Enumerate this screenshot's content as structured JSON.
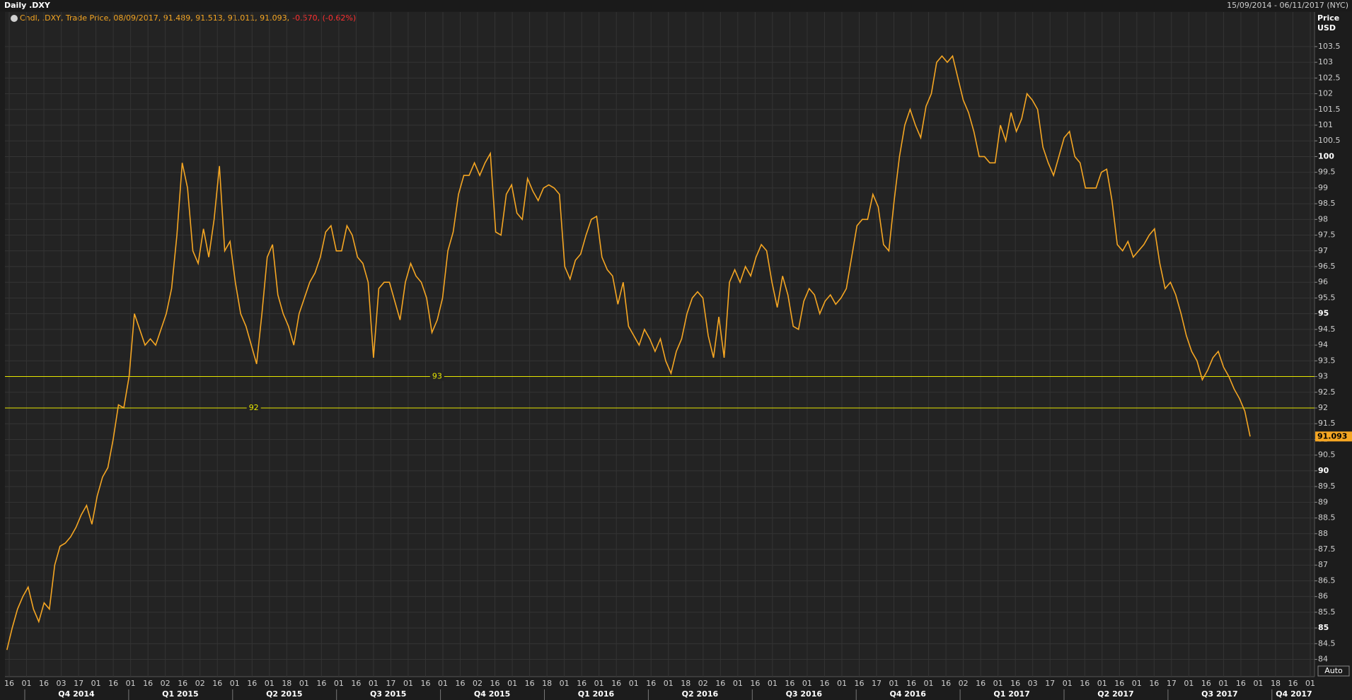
{
  "header": {
    "title": "Daily .DXY",
    "range": "15/09/2014 - 06/11/2017 (NYC)"
  },
  "chart_data": {
    "type": "line",
    "legend_text": "Cndl, .DXY, Trade Price, 08/09/2017, 91.489, 91.513, 91.011, 91.093,",
    "legend_change": "-0.570, (-0.62%)",
    "y_axis_label": "Price",
    "y_axis_unit": "USD",
    "color": "#f5a623",
    "values": [
      84.3,
      85.0,
      85.6,
      86.0,
      86.3,
      85.6,
      85.2,
      85.8,
      85.6,
      87.0,
      87.6,
      87.7,
      87.9,
      88.2,
      88.6,
      88.9,
      88.3,
      89.2,
      89.8,
      90.1,
      91.0,
      92.1,
      92.0,
      93.0,
      95.0,
      94.5,
      94.0,
      94.2,
      94.0,
      94.5,
      95.0,
      95.8,
      97.5,
      99.8,
      99.0,
      97.0,
      96.6,
      97.7,
      96.8,
      98.0,
      99.7,
      97.0,
      97.3,
      96.0,
      95.0,
      94.6,
      94.0,
      93.4,
      95.0,
      96.8,
      97.2,
      95.6,
      95.0,
      94.6,
      94.0,
      95.0,
      95.5,
      96.0,
      96.3,
      96.8,
      97.6,
      97.8,
      97.0,
      97.0,
      97.8,
      97.5,
      96.8,
      96.6,
      96.0,
      93.6,
      95.8,
      96.0,
      96.0,
      95.4,
      94.8,
      96.0,
      96.6,
      96.2,
      96.0,
      95.5,
      94.4,
      94.8,
      95.5,
      97.0,
      97.6,
      98.8,
      99.4,
      99.4,
      99.8,
      99.4,
      99.8,
      100.1,
      97.6,
      97.5,
      98.8,
      99.1,
      98.2,
      98.0,
      99.3,
      98.9,
      98.6,
      99.0,
      99.1,
      99.0,
      98.8,
      96.5,
      96.1,
      96.7,
      96.9,
      97.5,
      98.0,
      98.1,
      96.8,
      96.4,
      96.2,
      95.3,
      96.0,
      94.6,
      94.3,
      94.0,
      94.5,
      94.2,
      93.8,
      94.2,
      93.5,
      93.1,
      93.8,
      94.2,
      95.0,
      95.5,
      95.7,
      95.5,
      94.3,
      93.6,
      94.9,
      93.6,
      96.0,
      96.4,
      96.0,
      96.5,
      96.2,
      96.8,
      97.2,
      97.0,
      96.0,
      95.2,
      96.2,
      95.6,
      94.6,
      94.5,
      95.4,
      95.8,
      95.6,
      95.0,
      95.4,
      95.6,
      95.3,
      95.5,
      95.8,
      96.8,
      97.8,
      98.0,
      98.0,
      98.8,
      98.4,
      97.2,
      97.0,
      98.6,
      100.0,
      101.0,
      101.5,
      101.0,
      100.6,
      101.6,
      102.0,
      103.0,
      103.2,
      103.0,
      103.2,
      102.5,
      101.8,
      101.4,
      100.8,
      100.0,
      100.0,
      99.8,
      99.8,
      101.0,
      100.5,
      101.4,
      100.8,
      101.2,
      102.0,
      101.8,
      101.5,
      100.3,
      99.8,
      99.4,
      100.0,
      100.6,
      100.8,
      100.0,
      99.8,
      99.0,
      99.0,
      99.0,
      99.5,
      99.6,
      98.6,
      97.2,
      97.0,
      97.3,
      96.8,
      97.0,
      97.2,
      97.5,
      97.7,
      96.6,
      95.8,
      96.0,
      95.6,
      95.0,
      94.3,
      93.8,
      93.5,
      92.9,
      93.2,
      93.6,
      93.8,
      93.3,
      93.0,
      92.6,
      92.3,
      91.9,
      91.093
    ],
    "last_value": 91.093,
    "levels": [
      93,
      92
    ],
    "ylim": [
      83.45,
      104.6
    ],
    "yticks": [
      84,
      84.5,
      85,
      85.5,
      86,
      86.5,
      87,
      87.5,
      88,
      88.5,
      89,
      89.5,
      90,
      90.5,
      91,
      91.5,
      92,
      92.5,
      93,
      93.5,
      94,
      94.5,
      95,
      95.5,
      96,
      96.5,
      97,
      97.5,
      98,
      98.5,
      99,
      99.5,
      100,
      100.5,
      101,
      101.5,
      102,
      102.5,
      103,
      103.5
    ],
    "grid": true,
    "x_day_labels": [
      "16",
      "01",
      "16",
      "03",
      "17",
      "01",
      "16",
      "01",
      "16",
      "02",
      "16",
      "02",
      "16",
      "01",
      "16",
      "01",
      "18",
      "01",
      "16",
      "01",
      "16",
      "01",
      "17",
      "01",
      "16",
      "01",
      "16",
      "02",
      "16",
      "01",
      "16",
      "18",
      "01",
      "16",
      "01",
      "16",
      "01",
      "16",
      "01",
      "18",
      "02",
      "16",
      "01",
      "16",
      "01",
      "16",
      "01",
      "16",
      "01",
      "16",
      "17",
      "01",
      "16",
      "01",
      "16",
      "02",
      "16",
      "01",
      "16",
      "03",
      "17",
      "01",
      "16",
      "01",
      "16",
      "01",
      "16",
      "17",
      "01",
      "16",
      "01",
      "16",
      "01",
      "18",
      "16",
      "01"
    ],
    "x_quarter_labels": [
      "Q4 2014",
      "Q1 2015",
      "Q2 2015",
      "Q3 2015",
      "Q4 2015",
      "Q1 2016",
      "Q2 2016",
      "Q3 2016",
      "Q4 2016",
      "Q1 2017",
      "Q2 2017",
      "Q3 2017",
      "Q4 2017"
    ],
    "auto_button": "Auto"
  }
}
